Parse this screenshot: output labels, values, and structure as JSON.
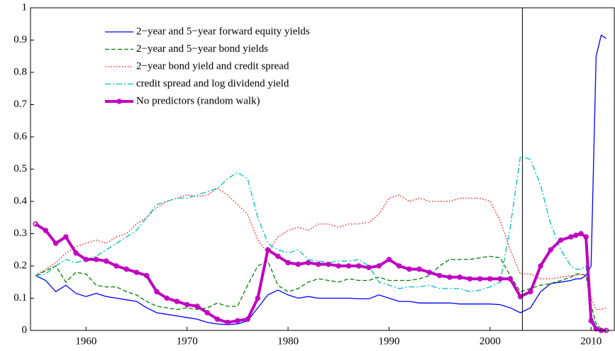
{
  "chart_data": {
    "type": "line",
    "x": [
      1955,
      1956,
      1957,
      1958,
      1959,
      1960,
      1961,
      1962,
      1963,
      1964,
      1965,
      1966,
      1967,
      1968,
      1969,
      1970,
      1971,
      1972,
      1973,
      1974,
      1975,
      1976,
      1977,
      1978,
      1979,
      1980,
      1981,
      1982,
      1983,
      1984,
      1985,
      1986,
      1987,
      1988,
      1989,
      1990,
      1991,
      1992,
      1993,
      1994,
      1995,
      1996,
      1997,
      1998,
      1999,
      2000,
      2001,
      2002,
      2003,
      2004,
      2005,
      2006,
      2007,
      2008,
      2008.5,
      2009,
      2009.5,
      2010,
      2010.5,
      2011,
      2011.5
    ],
    "series": [
      {
        "name": "2−year and 5−year forward equity yields",
        "color": "#0000ff",
        "linestyle": "solid",
        "values": [
          0.17,
          0.155,
          0.12,
          0.14,
          0.115,
          0.105,
          0.115,
          0.105,
          0.1,
          0.095,
          0.09,
          0.07,
          0.055,
          0.05,
          0.045,
          0.04,
          0.035,
          0.025,
          0.02,
          0.018,
          0.02,
          0.03,
          0.07,
          0.11,
          0.125,
          0.11,
          0.1,
          0.105,
          0.1,
          0.1,
          0.1,
          0.1,
          0.098,
          0.098,
          0.11,
          0.1,
          0.09,
          0.09,
          0.085,
          0.085,
          0.085,
          0.085,
          0.082,
          0.082,
          0.082,
          0.082,
          0.08,
          0.07,
          0.055,
          0.07,
          0.12,
          0.145,
          0.15,
          0.155,
          0.16,
          0.16,
          0.17,
          0.2,
          0.85,
          0.915,
          0.905
        ]
      },
      {
        "name": "2−year and 5−year bond yields",
        "color": "#007f00",
        "linestyle": "dashed",
        "values": [
          0.17,
          0.185,
          0.2,
          0.15,
          0.18,
          0.175,
          0.14,
          0.135,
          0.135,
          0.12,
          0.11,
          0.09,
          0.075,
          0.07,
          0.065,
          0.07,
          0.065,
          0.07,
          0.085,
          0.075,
          0.075,
          0.14,
          0.2,
          0.215,
          0.14,
          0.12,
          0.13,
          0.15,
          0.16,
          0.155,
          0.15,
          0.16,
          0.155,
          0.155,
          0.165,
          0.155,
          0.155,
          0.155,
          0.16,
          0.17,
          0.2,
          0.22,
          0.22,
          0.22,
          0.225,
          0.23,
          0.225,
          0.17,
          0.12,
          0.13,
          0.14,
          0.145,
          0.155,
          0.165,
          0.175,
          0.175,
          0.17,
          0.08,
          0.02,
          0.005,
          0
        ]
      },
      {
        "name": "2−year bond yield and credit spread",
        "color": "#ff0000",
        "linestyle": "dotted",
        "values": [
          0.17,
          0.19,
          0.21,
          0.24,
          0.26,
          0.27,
          0.28,
          0.27,
          0.29,
          0.3,
          0.33,
          0.35,
          0.38,
          0.4,
          0.41,
          0.42,
          0.415,
          0.42,
          0.44,
          0.42,
          0.39,
          0.36,
          0.28,
          0.24,
          0.29,
          0.31,
          0.32,
          0.31,
          0.33,
          0.33,
          0.32,
          0.33,
          0.33,
          0.335,
          0.36,
          0.41,
          0.42,
          0.4,
          0.41,
          0.4,
          0.4,
          0.4,
          0.41,
          0.41,
          0.41,
          0.4,
          0.34,
          0.25,
          0.175,
          0.175,
          0.16,
          0.16,
          0.165,
          0.17,
          0.17,
          0.175,
          0.17,
          0.1,
          0.065,
          0.065,
          0.07
        ]
      },
      {
        "name": "credit spread and log dividend yield",
        "color": "#00bfbf",
        "linestyle": "dashdot",
        "values": [
          0.17,
          0.175,
          0.2,
          0.22,
          0.21,
          0.22,
          0.23,
          0.25,
          0.27,
          0.29,
          0.31,
          0.35,
          0.39,
          0.4,
          0.41,
          0.41,
          0.42,
          0.43,
          0.44,
          0.47,
          0.49,
          0.47,
          0.35,
          0.27,
          0.25,
          0.24,
          0.25,
          0.22,
          0.215,
          0.21,
          0.215,
          0.215,
          0.22,
          0.2,
          0.15,
          0.14,
          0.13,
          0.135,
          0.135,
          0.14,
          0.13,
          0.13,
          0.13,
          0.12,
          0.125,
          0.135,
          0.15,
          0.32,
          0.54,
          0.53,
          0.45,
          0.33,
          0.25,
          0.2,
          0.19,
          0.19,
          0.2,
          0.05,
          0.01,
          0.005,
          0
        ]
      },
      {
        "name": "No predictors (random walk)",
        "color": "#bf00bf",
        "linestyle": "solid",
        "marker": "o",
        "values": [
          0.33,
          0.31,
          0.27,
          0.29,
          0.24,
          0.22,
          0.22,
          0.215,
          0.2,
          0.19,
          0.18,
          0.17,
          0.12,
          0.1,
          0.09,
          0.08,
          0.075,
          0.055,
          0.035,
          0.025,
          0.03,
          0.035,
          0.1,
          0.25,
          0.23,
          0.21,
          0.205,
          0.21,
          0.205,
          0.205,
          0.2,
          0.2,
          0.2,
          0.195,
          0.2,
          0.22,
          0.2,
          0.19,
          0.19,
          0.18,
          0.17,
          0.165,
          0.165,
          0.16,
          0.16,
          0.16,
          0.16,
          0.16,
          0.105,
          0.12,
          0.2,
          0.25,
          0.28,
          0.29,
          0.295,
          0.3,
          0.29,
          0.03,
          0.005,
          0,
          0
        ]
      }
    ],
    "xlim": [
      1954.5,
      2012.3
    ],
    "xticks": [
      1960,
      1970,
      1980,
      1990,
      2000,
      2010
    ],
    "ylim": [
      0,
      1
    ],
    "yticks": [
      0,
      0.1,
      0.2,
      0.3,
      0.4,
      0.5,
      0.6,
      0.7,
      0.8,
      0.9,
      1
    ],
    "vline": 2003.2,
    "legend": "upper left",
    "grid": false
  }
}
